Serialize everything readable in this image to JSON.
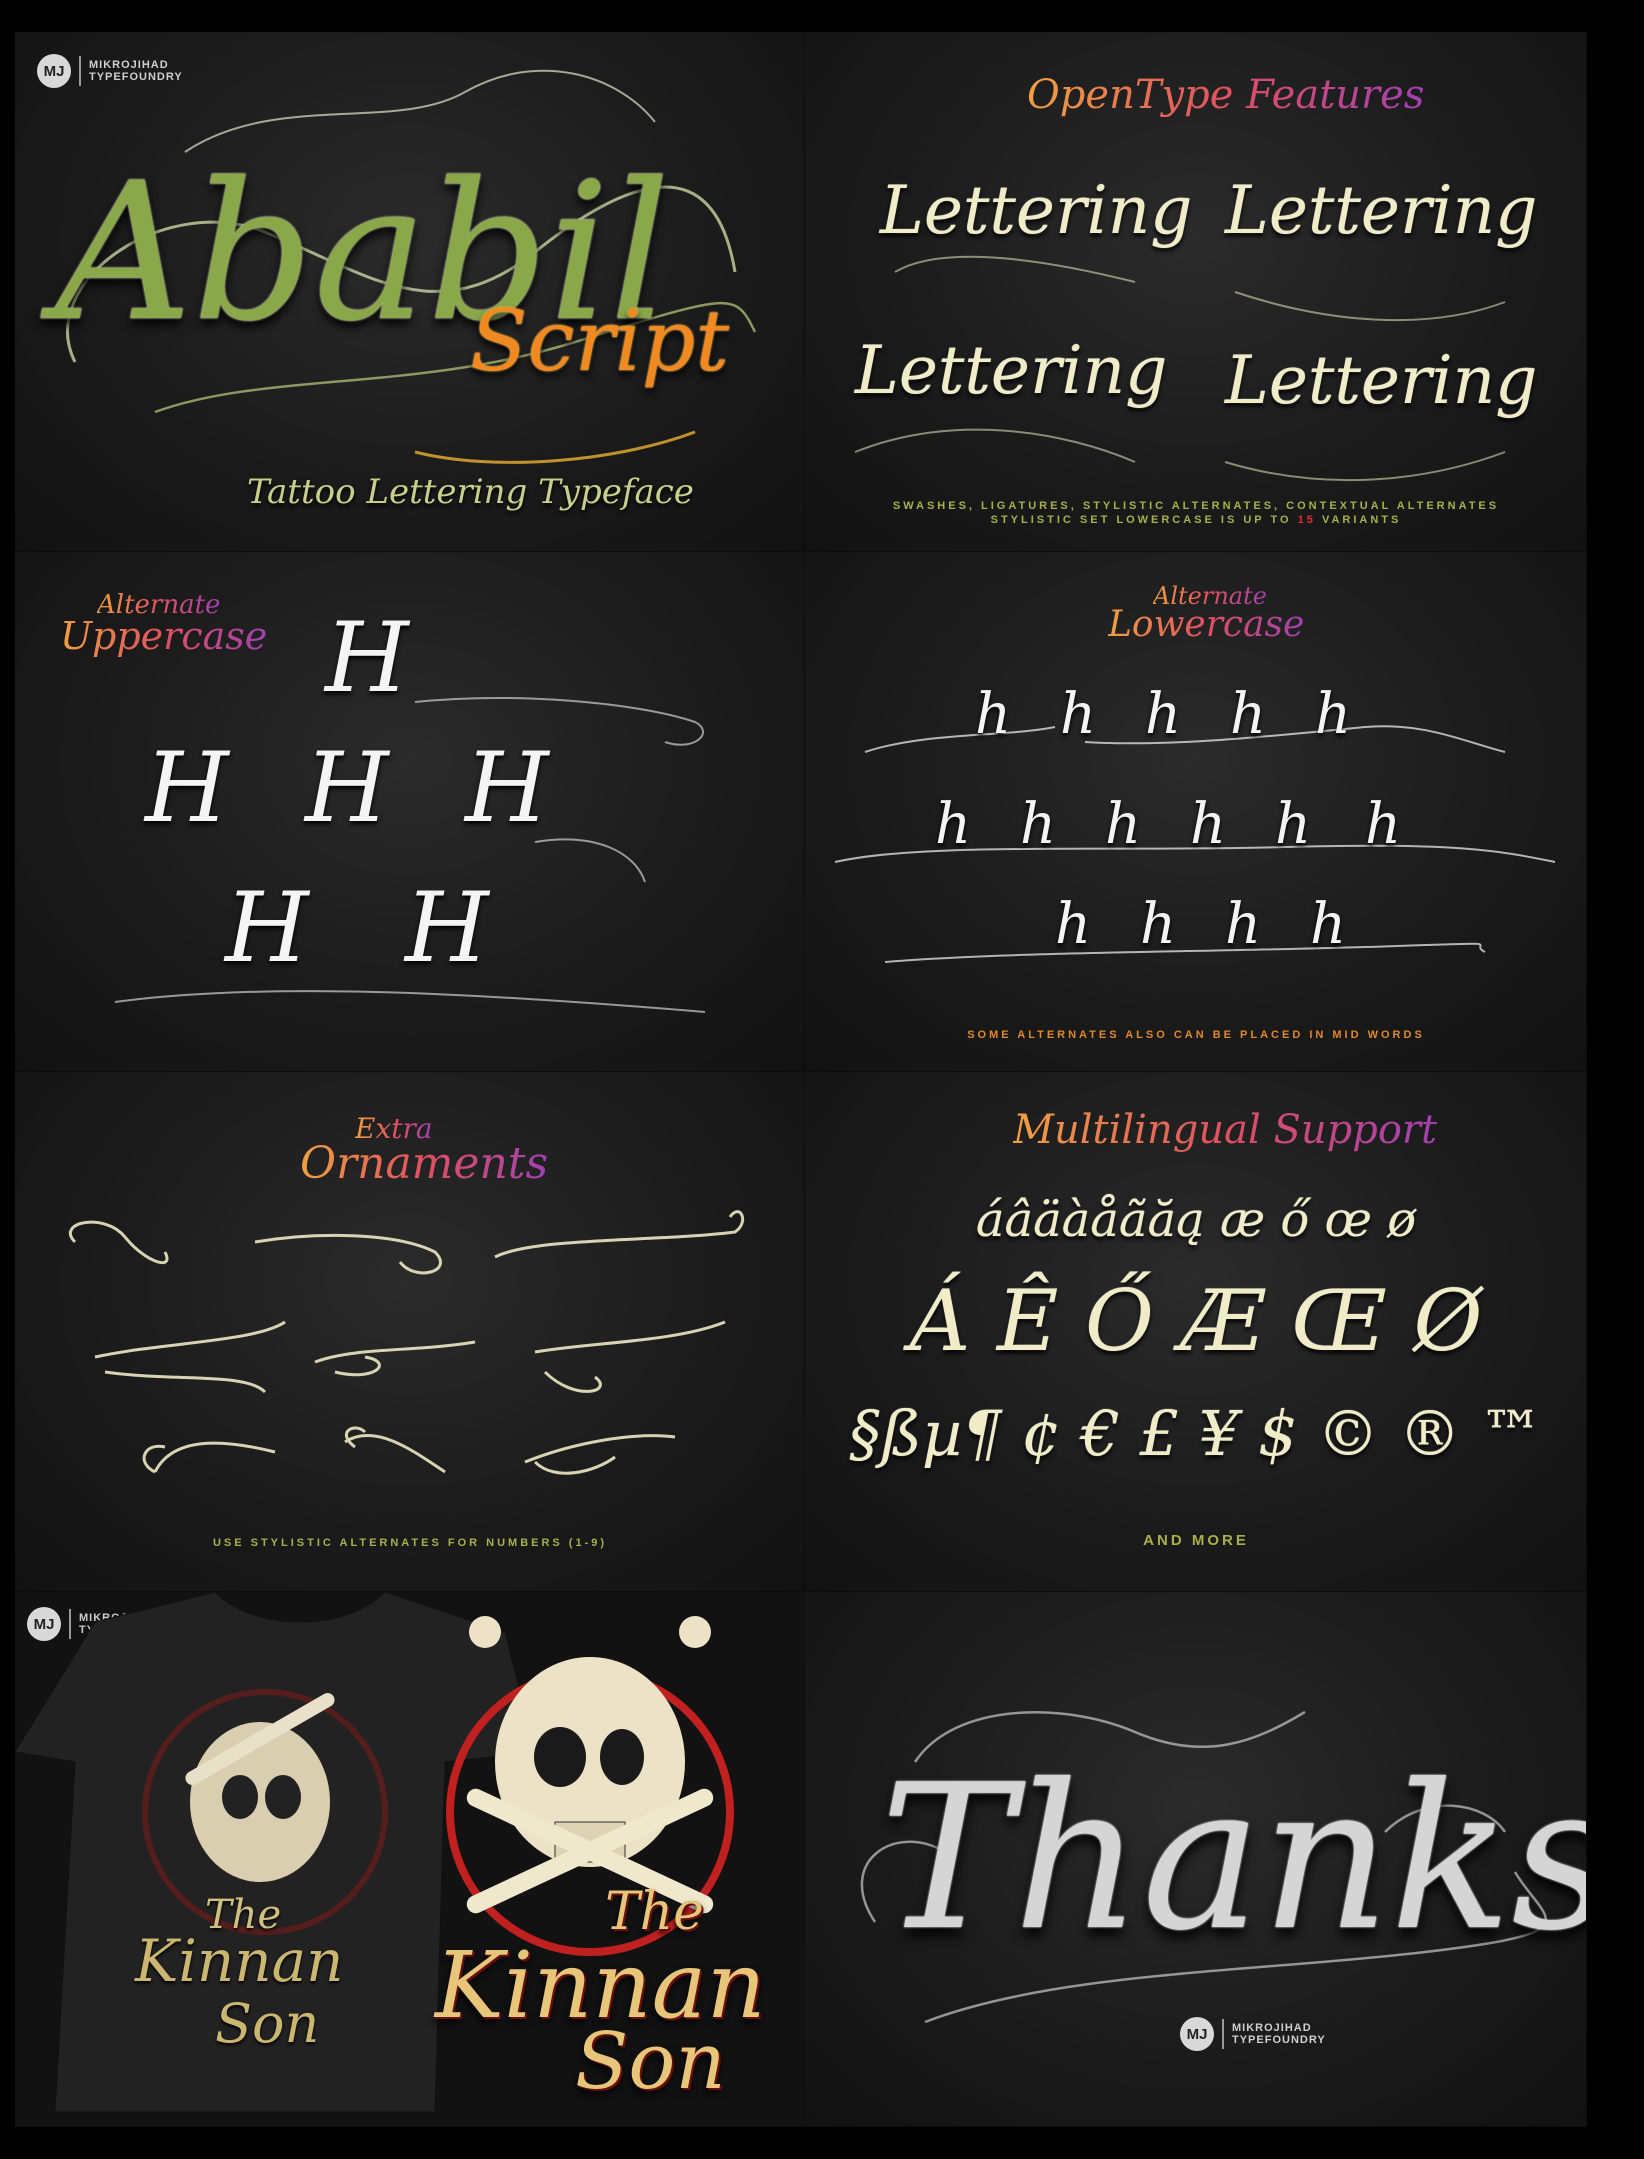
{
  "logo": {
    "mark": "MJ",
    "line1": "MIKROJIHAD",
    "line2": "TYPEFOUNDRY"
  },
  "hero": {
    "title": "Ababil",
    "subtitle": "Script",
    "tagline": "Tattoo Lettering Typeface"
  },
  "opentype": {
    "heading": "OpenType Features",
    "samples": [
      "Lettering",
      "Lettering",
      "Lettering",
      "Lettering"
    ],
    "caption_line1": "SWASHES, LIGATURES, STYLISTIC ALTERNATES, CONTEXTUAL ALTERNATES",
    "caption_line2_prefix": "STYLISTIC SET LOWERCASE IS UP TO",
    "caption_line2_number": "15",
    "caption_line2_suffix": "VARIANTS"
  },
  "uppercase": {
    "heading_top": "Alternate",
    "heading_bottom": "Uppercase",
    "glyph": "H"
  },
  "lowercase": {
    "heading_top": "Alternate",
    "heading_bottom": "Lowercase",
    "glyph": "h",
    "caption": "SOME ALTERNATES ALSO CAN BE PLACED IN MID WORDS"
  },
  "ornaments": {
    "heading_top": "Extra",
    "heading_bottom": "Ornaments",
    "caption": "USE STYLISTIC ALTERNATES FOR NUMBERS (1-9)"
  },
  "multilingual": {
    "heading": "Multilingual Support",
    "row1": "áâäàåãăą æ ő œ ø",
    "row2": "Á Ê Ő Æ Œ Ø",
    "row3": "§ßµ¶ ¢ € £ ¥ $ © ® ™",
    "caption": "AND MORE"
  },
  "shirt": {
    "line1": "The",
    "line2": "Kinnan",
    "line3": "Son"
  },
  "thanks": {
    "text": "Thanks"
  },
  "colors": {
    "cream": "#f1ecc8",
    "olive": "#a9b04a",
    "orange": "#e0882a",
    "red": "#e03030",
    "bg": "#1e1e1e"
  }
}
